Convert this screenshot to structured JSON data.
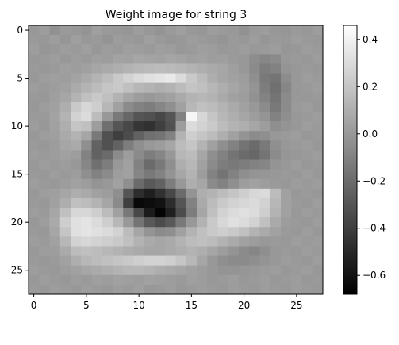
{
  "chart_data": {
    "type": "heatmap",
    "title": "Weight image for string 3",
    "xlabel": "",
    "ylabel": "",
    "colormap": "gray",
    "rows": 28,
    "cols": 28,
    "xlim": [
      -0.5,
      27.5
    ],
    "ylim": [
      27.5,
      -0.5
    ],
    "xticks": [
      0,
      5,
      10,
      15,
      20,
      25
    ],
    "yticks": [
      0,
      5,
      10,
      15,
      20,
      25
    ],
    "colorbar": {
      "vmin": -0.68,
      "vmax": 0.46,
      "ticks": [
        0.4,
        0.2,
        0.0,
        -0.2,
        -0.4,
        -0.6
      ],
      "tick_labels": [
        "0.4",
        "0.2",
        "0.0",
        "−0.2",
        "−0.4",
        "−0.6"
      ]
    },
    "values": [
      [
        0.0,
        0.02,
        -0.03,
        0.01,
        0.0,
        -0.02,
        0.03,
        0.01,
        0.0,
        -0.01,
        0.02,
        0.0,
        -0.02,
        0.01,
        0.03,
        0.0,
        -0.01,
        0.02,
        0.01,
        0.0,
        -0.03,
        0.01,
        0.02,
        0.0,
        -0.01,
        0.01,
        0.0,
        0.02
      ],
      [
        0.01,
        0.0,
        0.02,
        -0.01,
        0.03,
        0.0,
        0.01,
        -0.02,
        0.02,
        0.01,
        0.0,
        0.03,
        0.01,
        -0.01,
        0.0,
        0.02,
        0.01,
        0.0,
        -0.02,
        0.01,
        0.0,
        0.02,
        -0.01,
        0.01,
        0.0,
        0.02,
        0.01,
        0.0
      ],
      [
        0.02,
        -0.01,
        0.0,
        0.02,
        0.01,
        0.03,
        0.0,
        0.02,
        0.01,
        0.03,
        0.02,
        0.01,
        0.03,
        0.02,
        0.0,
        0.01,
        0.03,
        0.02,
        0.0,
        0.01,
        0.02,
        0.0,
        0.01,
        0.02,
        -0.01,
        0.0,
        0.02,
        0.01
      ],
      [
        0.0,
        0.01,
        0.02,
        0.0,
        0.02,
        0.01,
        0.03,
        0.02,
        0.05,
        0.04,
        0.06,
        0.05,
        0.04,
        0.06,
        0.05,
        0.03,
        0.04,
        0.02,
        0.03,
        0.01,
        0.0,
        -0.05,
        -0.08,
        -0.06,
        0.0,
        0.01,
        0.0,
        0.02
      ],
      [
        0.01,
        0.0,
        0.01,
        0.03,
        0.02,
        0.04,
        0.06,
        0.08,
        0.1,
        0.12,
        0.14,
        0.15,
        0.16,
        0.15,
        0.14,
        0.12,
        0.1,
        0.08,
        0.06,
        0.03,
        0.0,
        -0.06,
        -0.12,
        -0.1,
        -0.02,
        0.0,
        0.01,
        0.0
      ],
      [
        0.0,
        0.02,
        0.03,
        0.02,
        0.05,
        0.08,
        0.12,
        0.16,
        0.22,
        0.26,
        0.3,
        0.32,
        0.34,
        0.36,
        0.3,
        0.22,
        0.16,
        0.1,
        0.06,
        0.04,
        0.02,
        -0.04,
        -0.14,
        -0.16,
        -0.05,
        0.0,
        0.02,
        0.01
      ],
      [
        0.02,
        0.01,
        0.02,
        0.04,
        0.08,
        0.12,
        0.16,
        0.2,
        0.22,
        0.18,
        0.14,
        0.12,
        0.1,
        0.12,
        0.16,
        0.2,
        0.18,
        0.14,
        0.1,
        0.06,
        0.03,
        -0.02,
        -0.12,
        -0.18,
        -0.08,
        0.0,
        0.01,
        0.02
      ],
      [
        0.01,
        0.0,
        0.03,
        0.06,
        0.12,
        0.18,
        0.22,
        0.18,
        0.12,
        0.06,
        0.02,
        0.0,
        0.02,
        0.04,
        0.08,
        0.12,
        0.14,
        0.12,
        0.08,
        0.04,
        0.02,
        -0.03,
        -0.1,
        -0.16,
        -0.06,
        0.0,
        0.0,
        0.01
      ],
      [
        0.0,
        0.02,
        0.04,
        0.1,
        0.22,
        0.28,
        0.24,
        0.14,
        0.04,
        -0.06,
        -0.1,
        -0.12,
        -0.08,
        -0.04,
        0.04,
        0.14,
        0.18,
        0.16,
        0.12,
        0.08,
        0.04,
        0.0,
        -0.06,
        -0.14,
        -0.06,
        0.01,
        0.02,
        0.0
      ],
      [
        0.01,
        0.01,
        0.05,
        0.12,
        0.26,
        0.3,
        0.16,
        0.0,
        -0.14,
        -0.22,
        -0.3,
        -0.32,
        -0.36,
        -0.3,
        -0.1,
        0.42,
        0.28,
        0.2,
        0.14,
        0.1,
        0.06,
        0.02,
        -0.02,
        -0.1,
        -0.04,
        0.0,
        0.01,
        0.02
      ],
      [
        0.02,
        0.0,
        0.04,
        0.1,
        0.2,
        0.18,
        0.02,
        -0.18,
        -0.3,
        -0.36,
        -0.44,
        -0.46,
        -0.4,
        -0.32,
        0.02,
        0.3,
        0.26,
        0.22,
        0.16,
        0.12,
        0.1,
        0.06,
        0.02,
        -0.04,
        -0.02,
        0.0,
        0.02,
        0.01
      ],
      [
        0.0,
        0.02,
        0.03,
        0.08,
        0.12,
        0.06,
        -0.14,
        -0.32,
        -0.4,
        -0.34,
        -0.24,
        -0.18,
        -0.16,
        -0.1,
        0.12,
        0.24,
        0.2,
        0.16,
        0.1,
        0.04,
        -0.02,
        -0.06,
        -0.04,
        0.0,
        0.01,
        0.02,
        0.0,
        0.01
      ],
      [
        0.01,
        0.0,
        0.02,
        0.06,
        0.08,
        -0.04,
        -0.24,
        -0.32,
        -0.24,
        -0.12,
        -0.04,
        0.0,
        0.02,
        0.06,
        0.16,
        0.2,
        0.12,
        0.04,
        -0.04,
        -0.1,
        -0.16,
        -0.2,
        -0.14,
        -0.04,
        0.0,
        0.01,
        0.02,
        0.0
      ],
      [
        0.02,
        0.01,
        0.02,
        0.04,
        0.02,
        -0.1,
        -0.24,
        -0.2,
        -0.06,
        0.02,
        -0.06,
        -0.12,
        -0.08,
        0.0,
        0.14,
        0.16,
        0.06,
        -0.04,
        -0.1,
        -0.16,
        -0.2,
        -0.22,
        -0.16,
        -0.06,
        -0.01,
        0.0,
        0.01,
        0.02
      ],
      [
        0.0,
        0.02,
        0.01,
        0.02,
        0.0,
        -0.08,
        -0.18,
        -0.12,
        0.0,
        0.04,
        -0.1,
        -0.2,
        -0.14,
        -0.04,
        0.1,
        0.14,
        0.04,
        -0.06,
        -0.12,
        -0.14,
        -0.12,
        -0.1,
        -0.08,
        -0.02,
        0.0,
        0.02,
        0.0,
        0.01
      ],
      [
        0.01,
        0.0,
        0.02,
        0.01,
        0.02,
        -0.04,
        -0.1,
        -0.06,
        0.02,
        0.04,
        -0.08,
        -0.14,
        -0.1,
        -0.02,
        0.06,
        0.12,
        0.02,
        -0.1,
        -0.16,
        -0.1,
        -0.04,
        -0.02,
        -0.01,
        0.0,
        0.01,
        0.0,
        0.02,
        0.0
      ],
      [
        0.02,
        0.01,
        0.0,
        0.02,
        0.04,
        0.02,
        -0.02,
        0.0,
        0.04,
        -0.04,
        -0.2,
        -0.28,
        -0.24,
        -0.12,
        0.0,
        0.1,
        0.06,
        -0.06,
        -0.1,
        -0.04,
        0.02,
        0.04,
        0.02,
        0.01,
        0.0,
        0.02,
        0.01,
        0.02
      ],
      [
        0.0,
        0.02,
        0.03,
        0.06,
        0.1,
        0.08,
        0.04,
        0.02,
        -0.04,
        -0.3,
        -0.48,
        -0.54,
        -0.46,
        -0.36,
        -0.2,
        -0.02,
        0.1,
        0.12,
        0.16,
        0.2,
        0.24,
        0.28,
        0.3,
        0.16,
        0.04,
        0.0,
        0.01,
        0.0
      ],
      [
        0.01,
        0.0,
        0.04,
        0.1,
        0.18,
        0.16,
        0.12,
        0.06,
        -0.06,
        -0.4,
        -0.64,
        -0.62,
        -0.6,
        -0.48,
        -0.3,
        -0.1,
        0.08,
        0.16,
        0.22,
        0.26,
        0.28,
        0.3,
        0.26,
        0.14,
        0.04,
        0.01,
        0.0,
        0.02
      ],
      [
        0.02,
        0.01,
        0.06,
        0.18,
        0.28,
        0.28,
        0.24,
        0.16,
        0.04,
        -0.14,
        -0.36,
        -0.56,
        -0.66,
        -0.54,
        -0.34,
        -0.12,
        0.06,
        0.18,
        0.26,
        0.3,
        0.32,
        0.3,
        0.24,
        0.12,
        0.04,
        0.0,
        0.02,
        0.01
      ],
      [
        0.0,
        0.02,
        0.08,
        0.24,
        0.32,
        0.34,
        0.3,
        0.24,
        0.14,
        0.0,
        -0.16,
        -0.28,
        -0.34,
        -0.28,
        -0.14,
        0.0,
        0.12,
        0.22,
        0.28,
        0.32,
        0.3,
        0.26,
        0.18,
        0.08,
        0.02,
        0.01,
        0.0,
        0.02
      ],
      [
        0.01,
        0.0,
        0.06,
        0.2,
        0.32,
        0.34,
        0.32,
        0.3,
        0.26,
        0.16,
        0.06,
        -0.02,
        -0.06,
        -0.04,
        0.04,
        0.12,
        0.18,
        0.22,
        0.24,
        0.22,
        0.18,
        0.12,
        0.08,
        0.04,
        0.01,
        0.0,
        0.02,
        0.0
      ],
      [
        0.02,
        0.01,
        0.04,
        0.14,
        0.26,
        0.28,
        0.26,
        0.24,
        0.22,
        0.18,
        0.12,
        0.08,
        0.06,
        0.08,
        0.12,
        0.16,
        0.18,
        0.16,
        0.12,
        0.08,
        0.04,
        0.02,
        0.0,
        0.01,
        0.0,
        0.02,
        0.01,
        0.02
      ],
      [
        0.0,
        0.02,
        0.02,
        0.08,
        0.16,
        0.18,
        0.16,
        0.14,
        0.12,
        0.1,
        0.08,
        0.06,
        0.06,
        0.08,
        0.1,
        0.12,
        0.1,
        0.06,
        0.02,
        -0.02,
        -0.06,
        -0.08,
        -0.04,
        0.0,
        0.01,
        0.0,
        0.02,
        0.01
      ],
      [
        0.01,
        0.0,
        0.01,
        0.04,
        0.1,
        0.14,
        0.16,
        0.18,
        0.2,
        0.22,
        0.24,
        0.26,
        0.26,
        0.24,
        0.2,
        0.14,
        0.06,
        0.0,
        -0.04,
        -0.06,
        -0.06,
        -0.04,
        -0.02,
        0.0,
        0.02,
        0.01,
        0.0,
        0.02
      ],
      [
        0.02,
        0.01,
        0.0,
        0.02,
        0.04,
        0.06,
        0.08,
        0.1,
        0.12,
        0.14,
        0.14,
        0.12,
        0.1,
        0.08,
        0.06,
        0.04,
        0.02,
        0.0,
        -0.02,
        -0.02,
        -0.01,
        0.0,
        0.01,
        0.02,
        0.0,
        0.01,
        0.02,
        0.0
      ],
      [
        0.0,
        0.02,
        0.01,
        0.0,
        0.02,
        0.01,
        0.03,
        0.02,
        0.04,
        0.03,
        0.02,
        0.04,
        0.03,
        0.02,
        0.01,
        0.03,
        0.02,
        0.0,
        0.01,
        0.02,
        0.0,
        0.01,
        0.02,
        0.0,
        0.01,
        0.02,
        0.0,
        0.01
      ],
      [
        0.01,
        0.0,
        0.02,
        0.01,
        0.0,
        0.02,
        0.01,
        0.0,
        0.02,
        0.01,
        0.03,
        0.0,
        0.01,
        0.02,
        0.0,
        0.01,
        0.02,
        0.01,
        0.0,
        0.02,
        0.01,
        0.0,
        0.02,
        0.01,
        0.0,
        0.02,
        0.01,
        0.0
      ]
    ]
  }
}
